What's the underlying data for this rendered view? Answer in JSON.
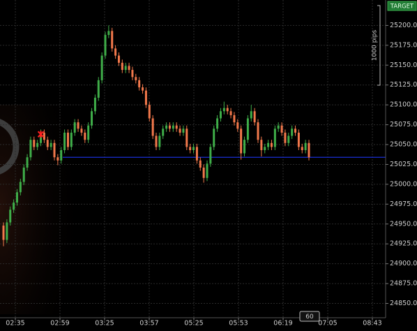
{
  "chart_data": {
    "type": "candlestick",
    "up_color": "#3fae49",
    "down_color": "#f2784b",
    "grid": true,
    "ylim": [
      24832,
      25232
    ],
    "yticks": [
      {
        "value": 24850,
        "label": "24850.0"
      },
      {
        "value": 24875,
        "label": "24875.0"
      },
      {
        "value": 24900,
        "label": "24900.0"
      },
      {
        "value": 24925,
        "label": "24925.0"
      },
      {
        "value": 24950,
        "label": "24950.0"
      },
      {
        "value": 24975,
        "label": "24975.0"
      },
      {
        "value": 25000,
        "label": "25000.0"
      },
      {
        "value": 25025,
        "label": "25025.0"
      },
      {
        "value": 25050,
        "label": "25050.0"
      },
      {
        "value": 25075,
        "label": "25075.0"
      },
      {
        "value": 25100,
        "label": "25100.0"
      },
      {
        "value": 25125,
        "label": "25125.0"
      },
      {
        "value": 25150,
        "label": "25150.0"
      },
      {
        "value": 25175,
        "label": "25175.0"
      },
      {
        "value": 25200,
        "label": "25200.0"
      }
    ],
    "xticks": [
      "02:35",
      "02:59",
      "03:25",
      "03:57",
      "05:25",
      "05:53",
      "06:19",
      "07:05",
      "08:43"
    ],
    "level_line": {
      "value": 25034,
      "color": "#1a2fd6"
    },
    "trade_marker": {
      "value": 25063,
      "color": "#ff2020"
    },
    "target_label": "TARGET",
    "range_label": "1000 pips",
    "period_label": "60",
    "candles": [
      [
        24948,
        24952,
        24922,
        24930
      ],
      [
        24930,
        24956,
        24926,
        24952
      ],
      [
        24952,
        24972,
        24948,
        24968
      ],
      [
        24968,
        24981,
        24964,
        24977
      ],
      [
        24977,
        24994,
        24973,
        24990
      ],
      [
        24990,
        25007,
        24986,
        25003
      ],
      [
        25003,
        25025,
        24999,
        25021
      ],
      [
        25021,
        25038,
        25017,
        25034
      ],
      [
        25034,
        25060,
        25030,
        25056
      ],
      [
        25056,
        25060,
        25043,
        25047
      ],
      [
        25047,
        25056,
        25043,
        25052
      ],
      [
        25052,
        25069,
        25048,
        25065
      ],
      [
        25065,
        25069,
        25052,
        25056
      ],
      [
        25056,
        25060,
        25043,
        25047
      ],
      [
        25047,
        25056,
        25043,
        25052
      ],
      [
        25052,
        25056,
        25030,
        25034
      ],
      [
        25034,
        25038,
        25024,
        25030
      ],
      [
        25030,
        25047,
        25026,
        25043
      ],
      [
        25043,
        25069,
        25039,
        25065
      ],
      [
        25065,
        25069,
        25043,
        25047
      ],
      [
        25047,
        25069,
        25043,
        25065
      ],
      [
        25065,
        25082,
        25061,
        25078
      ],
      [
        25078,
        25082,
        25066,
        25070
      ],
      [
        25070,
        25074,
        25061,
        25065
      ],
      [
        25065,
        25069,
        25052,
        25056
      ],
      [
        25056,
        25078,
        25052,
        25074
      ],
      [
        25074,
        25096,
        25070,
        25092
      ],
      [
        25092,
        25113,
        25088,
        25109
      ],
      [
        25109,
        25135,
        25105,
        25131
      ],
      [
        25131,
        25166,
        25127,
        25162
      ],
      [
        25162,
        25192,
        25158,
        25188
      ],
      [
        25188,
        25200,
        25184,
        25193
      ],
      [
        25193,
        25197,
        25167,
        25171
      ],
      [
        25171,
        25175,
        25158,
        25162
      ],
      [
        25162,
        25166,
        25149,
        25153
      ],
      [
        25153,
        25157,
        25140,
        25144
      ],
      [
        25144,
        25153,
        25140,
        25149
      ],
      [
        25149,
        25153,
        25140,
        25144
      ],
      [
        25144,
        25148,
        25131,
        25135
      ],
      [
        25135,
        25139,
        25127,
        25131
      ],
      [
        25131,
        25135,
        25118,
        25122
      ],
      [
        25122,
        25126,
        25114,
        25118
      ],
      [
        25118,
        25122,
        25096,
        25100
      ],
      [
        25100,
        25104,
        25079,
        25083
      ],
      [
        25083,
        25087,
        25057,
        25061
      ],
      [
        25061,
        25065,
        25043,
        25047
      ],
      [
        25047,
        25065,
        25043,
        25061
      ],
      [
        25061,
        25074,
        25057,
        25070
      ],
      [
        25070,
        25078,
        25066,
        25074
      ],
      [
        25074,
        25078,
        25066,
        25070
      ],
      [
        25070,
        25078,
        25066,
        25074
      ],
      [
        25074,
        25078,
        25066,
        25070
      ],
      [
        25070,
        25074,
        25061,
        25065
      ],
      [
        25065,
        25074,
        25061,
        25070
      ],
      [
        25070,
        25074,
        25043,
        25047
      ],
      [
        25047,
        25051,
        25039,
        25043
      ],
      [
        25043,
        25051,
        25039,
        25047
      ],
      [
        25047,
        25051,
        25026,
        25030
      ],
      [
        25030,
        25034,
        25017,
        25021
      ],
      [
        25021,
        25025,
        25002,
        25008
      ],
      [
        25008,
        25030,
        25004,
        25026
      ],
      [
        25026,
        25051,
        25022,
        25047
      ],
      [
        25047,
        25074,
        25043,
        25070
      ],
      [
        25070,
        25087,
        25066,
        25083
      ],
      [
        25083,
        25096,
        25079,
        25092
      ],
      [
        25092,
        25104,
        25088,
        25096
      ],
      [
        25096,
        25100,
        25088,
        25092
      ],
      [
        25092,
        25096,
        25083,
        25087
      ],
      [
        25087,
        25091,
        25074,
        25078
      ],
      [
        25078,
        25082,
        25066,
        25070
      ],
      [
        25070,
        25074,
        25031,
        25039
      ],
      [
        25039,
        25060,
        25035,
        25056
      ],
      [
        25056,
        25087,
        25052,
        25083
      ],
      [
        25083,
        25100,
        25079,
        25092
      ],
      [
        25092,
        25096,
        25074,
        25078
      ],
      [
        25078,
        25082,
        25052,
        25056
      ],
      [
        25056,
        25060,
        25035,
        25043
      ],
      [
        25043,
        25051,
        25039,
        25047
      ],
      [
        25047,
        25056,
        25043,
        25052
      ],
      [
        25052,
        25056,
        25043,
        25047
      ],
      [
        25047,
        25074,
        25043,
        25070
      ],
      [
        25070,
        25078,
        25066,
        25074
      ],
      [
        25074,
        25078,
        25061,
        25065
      ],
      [
        25065,
        25069,
        25048,
        25052
      ],
      [
        25052,
        25065,
        25048,
        25061
      ],
      [
        25061,
        25074,
        25057,
        25070
      ],
      [
        25070,
        25074,
        25061,
        25065
      ],
      [
        25065,
        25069,
        25043,
        25047
      ],
      [
        25047,
        25051,
        25039,
        25043
      ],
      [
        25043,
        25056,
        25039,
        25052
      ],
      [
        25052,
        25056,
        25030,
        25034
      ]
    ]
  }
}
